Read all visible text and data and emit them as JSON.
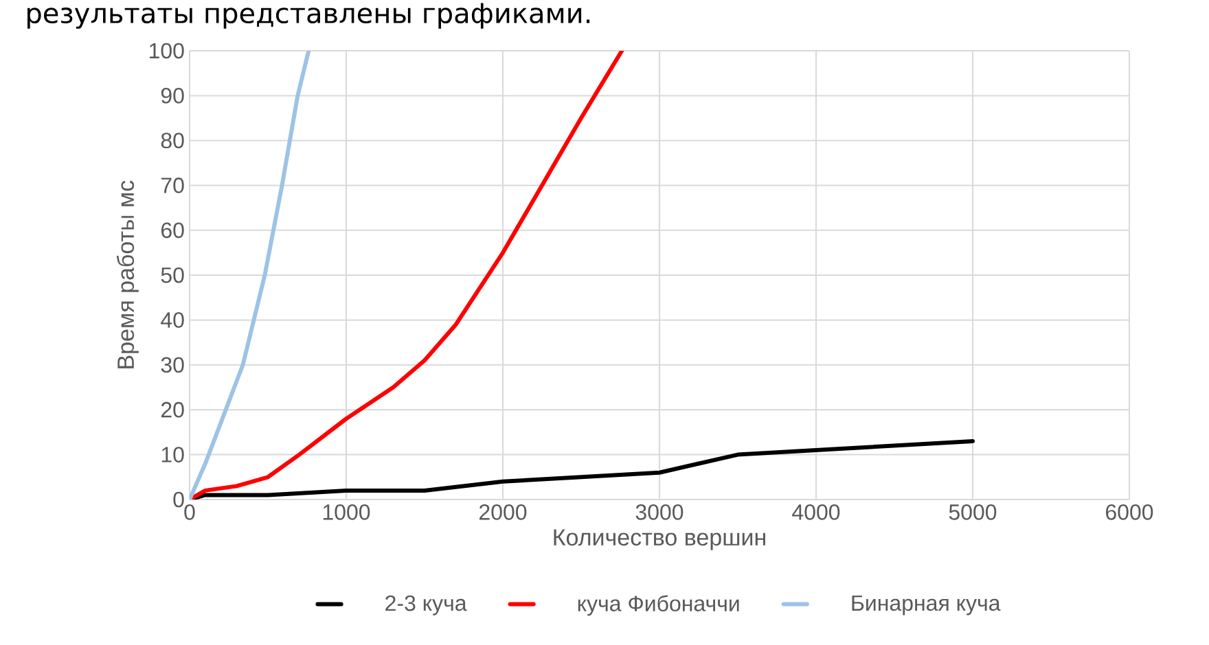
{
  "chart_data": {
    "type": "line",
    "xlabel": "Количество вершин",
    "ylabel": "Время работы мс",
    "annotations": [
      "результаты представлены графиками."
    ],
    "xlim": [
      0,
      6000
    ],
    "xticks": [
      0,
      1000,
      2000,
      3000,
      4000,
      5000,
      6000
    ],
    "ylim": [
      0,
      100
    ],
    "yticks": [
      0,
      10,
      20,
      30,
      40,
      50,
      60,
      70,
      80,
      90,
      100
    ],
    "grid": true,
    "legend": "bottom",
    "series": [
      {
        "name": "2-3 куча",
        "color": "#000000",
        "x": [
          0,
          100,
          500,
          1000,
          1500,
          2000,
          2500,
          3000,
          3500,
          4000,
          4500,
          5000
        ],
        "values": [
          0,
          1,
          1,
          2,
          2,
          4,
          5,
          6,
          10,
          11,
          12,
          13
        ]
      },
      {
        "name": "куча Фибоначчи",
        "color": "#ff0000",
        "x": [
          0,
          100,
          300,
          500,
          700,
          1000,
          1300,
          1500,
          1700,
          2000,
          2250,
          2500,
          2760
        ],
        "values": [
          0,
          2,
          3,
          5,
          10,
          18,
          25,
          31,
          39,
          55,
          70,
          85,
          100
        ]
      },
      {
        "name": "Бинарная куча",
        "color": "#9dc3e6",
        "x": [
          0,
          100,
          340,
          480,
          590,
          690,
          760
        ],
        "values": [
          0,
          8,
          30,
          50,
          70,
          90,
          100
        ]
      }
    ]
  }
}
